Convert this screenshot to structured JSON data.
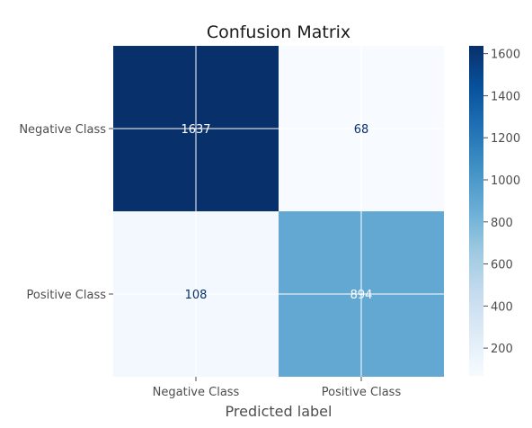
{
  "chart_data": {
    "type": "heatmap",
    "title": "Confusion Matrix",
    "xlabel": "Predicted label",
    "ylabel": "",
    "x_categories": [
      "Negative Class",
      "Positive Class"
    ],
    "y_categories": [
      "Negative Class",
      "Positive Class"
    ],
    "y_tick_labels_shown": [
      "Negative Class",
      "Positive Class"
    ],
    "values": [
      [
        1637,
        68
      ],
      [
        108,
        894
      ]
    ],
    "cell_labels": [
      [
        "1637",
        "68"
      ],
      [
        "108",
        "894"
      ]
    ],
    "colormap": "Blues",
    "color_range": [
      68,
      1637
    ],
    "colorbar": {
      "ticks": [
        200,
        400,
        600,
        800,
        1000,
        1200,
        1400,
        1600
      ],
      "tick_labels": [
        "200",
        "400",
        "600",
        "800",
        "1000",
        "1200",
        "1400",
        "1600"
      ]
    },
    "grid": true,
    "colors": {
      "low": "#f7fbff",
      "mid": "#6baed6",
      "high": "#08306b",
      "grid": "#ffffff"
    }
  }
}
